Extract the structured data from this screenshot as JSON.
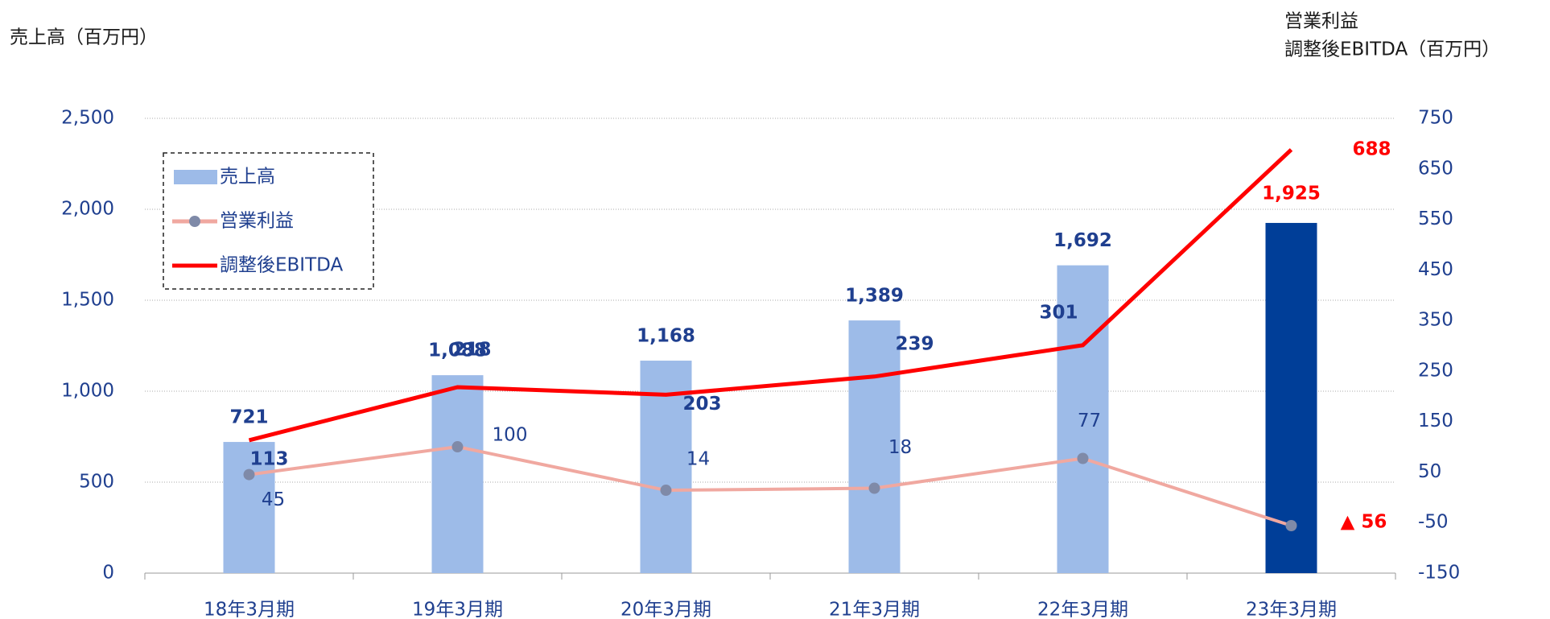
{
  "chart_data": {
    "type": "bar",
    "y_label": "売上高（百万円）",
    "y2_label_lines": [
      "営業利益",
      "調整後EBITDA（百万円）"
    ],
    "categories": [
      "18年3月期",
      "19年3月期",
      "20年3月期",
      "21年3月期",
      "22年3月期",
      "23年3月期"
    ],
    "series": [
      {
        "name": "売上高",
        "type": "bar",
        "axis": "y",
        "color": "#9dbbe8",
        "colors": [
          "#9dbbe8",
          "#9dbbe8",
          "#9dbbe8",
          "#9dbbe8",
          "#9dbbe8",
          "#003e98"
        ],
        "values": [
          721,
          1088,
          1168,
          1389,
          1692,
          1925
        ],
        "value_labels": [
          "721",
          "1,088",
          "1,168",
          "1,389",
          "1,692",
          "1,925"
        ]
      },
      {
        "name": "営業利益",
        "type": "line",
        "axis": "y2",
        "color": "#f0a8a0",
        "marker_color": "#7f8aa8",
        "values": [
          45,
          100,
          14,
          18,
          77,
          -56
        ],
        "value_labels": [
          "45",
          "100",
          "14",
          "18",
          "77",
          "▲ 56"
        ]
      },
      {
        "name": "調整後EBITDA",
        "type": "line",
        "axis": "y2",
        "color": "#ff0000",
        "values": [
          113,
          218,
          203,
          239,
          301,
          688
        ]
      }
    ],
    "highlight_color": "#ff0000",
    "ylim": [
      0,
      2500
    ],
    "yticks": [
      0,
      {
        "value": 500,
        "label": "500"
      },
      {
        "value": 1000,
        "label": "1,000"
      },
      {
        "value": 1500,
        "label": "1,500"
      },
      {
        "value": 2000,
        "label": "2,000"
      },
      {
        "value": 2500,
        "label": "2,500"
      }
    ],
    "y2lim": [
      -150,
      750
    ],
    "y2ticks": [
      -150,
      -50,
      50,
      150,
      250,
      350,
      450,
      550,
      650,
      750
    ],
    "grid": true,
    "legend": "upper left"
  }
}
